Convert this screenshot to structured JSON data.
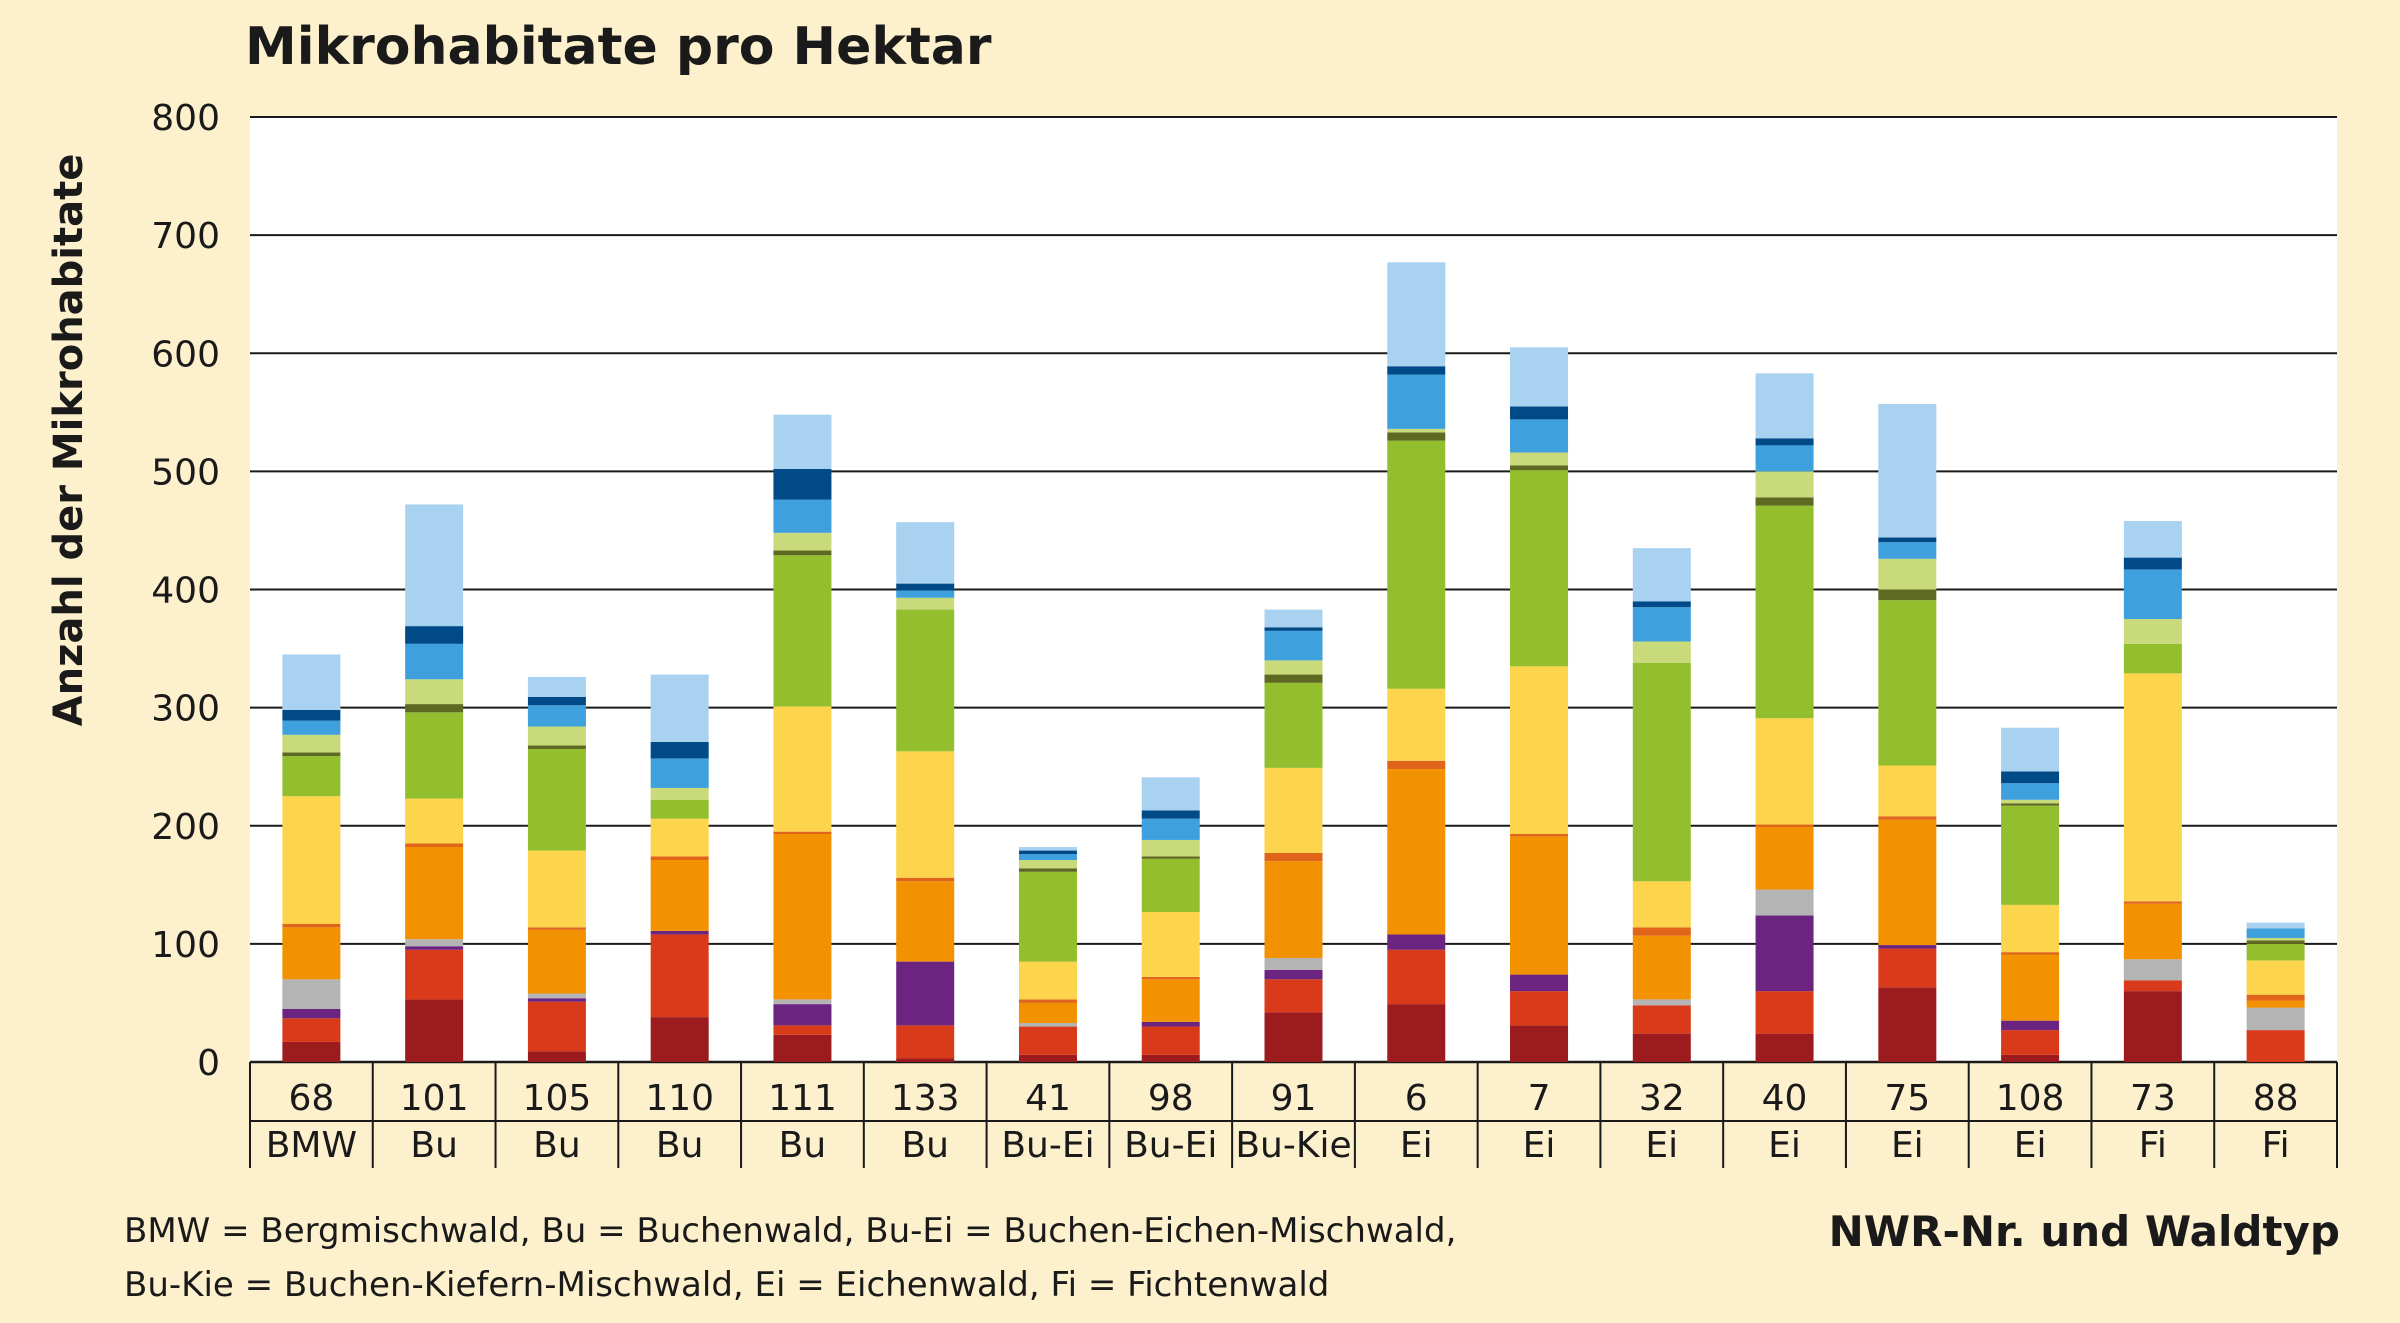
{
  "chart_data": {
    "type": "bar",
    "stacked": true,
    "title": "Mikrohabitate pro Hektar",
    "ylabel": "Anzahl der Mikrohabitate",
    "xlabel": "NWR-Nr. und Waldtyp",
    "ylim": [
      0,
      800
    ],
    "yticks": [
      "0",
      "100",
      "200",
      "300",
      "400",
      "500",
      "600",
      "700",
      "800"
    ],
    "grid": true,
    "categories": [
      {
        "nr": "68",
        "typ": "BMW"
      },
      {
        "nr": "101",
        "typ": "Bu"
      },
      {
        "nr": "105",
        "typ": "Bu"
      },
      {
        "nr": "110",
        "typ": "Bu"
      },
      {
        "nr": "111",
        "typ": "Bu"
      },
      {
        "nr": "133",
        "typ": "Bu"
      },
      {
        "nr": "41",
        "typ": "Bu-Ei"
      },
      {
        "nr": "98",
        "typ": "Bu-Ei"
      },
      {
        "nr": "91",
        "typ": "Bu-Kie"
      },
      {
        "nr": "6",
        "typ": "Ei"
      },
      {
        "nr": "7",
        "typ": "Ei"
      },
      {
        "nr": "32",
        "typ": "Ei"
      },
      {
        "nr": "40",
        "typ": "Ei"
      },
      {
        "nr": "75",
        "typ": "Ei"
      },
      {
        "nr": "108",
        "typ": "Ei"
      },
      {
        "nr": "73",
        "typ": "Fi"
      },
      {
        "nr": "88",
        "typ": "Fi"
      }
    ],
    "series": [
      {
        "color": "#9b1b1e",
        "values": [
          17,
          53,
          9,
          38,
          23,
          3,
          6,
          6,
          42,
          49,
          31,
          24,
          24,
          63,
          6,
          60,
          0
        ]
      },
      {
        "color": "#d93a1a",
        "values": [
          20,
          42,
          42,
          70,
          8,
          28,
          24,
          24,
          28,
          46,
          29,
          24,
          36,
          33,
          21,
          9,
          27
        ]
      },
      {
        "color": "#6b2580",
        "values": [
          8,
          3,
          3,
          3,
          18,
          54,
          0,
          4,
          8,
          13,
          14,
          0,
          64,
          3,
          8,
          0,
          0
        ]
      },
      {
        "color": "#b4b4b4",
        "values": [
          25,
          6,
          4,
          0,
          4,
          0,
          3,
          0,
          10,
          0,
          0,
          5,
          22,
          0,
          0,
          18,
          19
        ]
      },
      {
        "color": "#f29200",
        "values": [
          44,
          78,
          54,
          60,
          140,
          68,
          17,
          36,
          82,
          140,
          117,
          54,
          53,
          106,
          56,
          47,
          6
        ]
      },
      {
        "color": "#e0651a",
        "values": [
          3,
          3,
          2,
          3,
          2,
          3,
          3,
          2,
          7,
          7,
          2,
          7,
          2,
          3,
          2,
          2,
          5
        ]
      },
      {
        "color": "#fcd54c",
        "values": [
          108,
          38,
          65,
          32,
          106,
          107,
          32,
          55,
          72,
          61,
          142,
          39,
          90,
          43,
          40,
          193,
          29
        ]
      },
      {
        "color": "#93bf2f",
        "values": [
          34,
          73,
          86,
          16,
          128,
          120,
          76,
          45,
          72,
          210,
          166,
          185,
          180,
          140,
          84,
          25,
          14
        ]
      },
      {
        "color": "#5e6a22",
        "values": [
          3,
          7,
          3,
          0,
          4,
          0,
          3,
          2,
          7,
          7,
          4,
          0,
          7,
          9,
          2,
          0,
          3
        ]
      },
      {
        "color": "#c8da7a",
        "values": [
          15,
          21,
          16,
          10,
          15,
          10,
          7,
          14,
          12,
          3,
          11,
          18,
          22,
          26,
          3,
          21,
          2
        ]
      },
      {
        "color": "#3ea0dd",
        "values": [
          12,
          30,
          18,
          25,
          28,
          6,
          5,
          18,
          25,
          46,
          28,
          29,
          22,
          14,
          14,
          42,
          8
        ]
      },
      {
        "color": "#004b87",
        "values": [
          9,
          15,
          7,
          14,
          26,
          6,
          3,
          7,
          3,
          7,
          11,
          5,
          6,
          4,
          10,
          10,
          0
        ]
      },
      {
        "color": "#a9d1f0",
        "values": [
          47,
          103,
          17,
          57,
          46,
          52,
          3,
          28,
          15,
          88,
          50,
          45,
          55,
          113,
          37,
          31,
          5
        ]
      }
    ],
    "footnote": [
      "BMW = Bergmischwald,  Bu = Buchenwald,  Bu-Ei = Buchen-Eichen-Mischwald,",
      "Bu-Kie = Buchen-Kiefern-Mischwald, Ei = Eichenwald, Fi = Fichtenwald"
    ]
  }
}
